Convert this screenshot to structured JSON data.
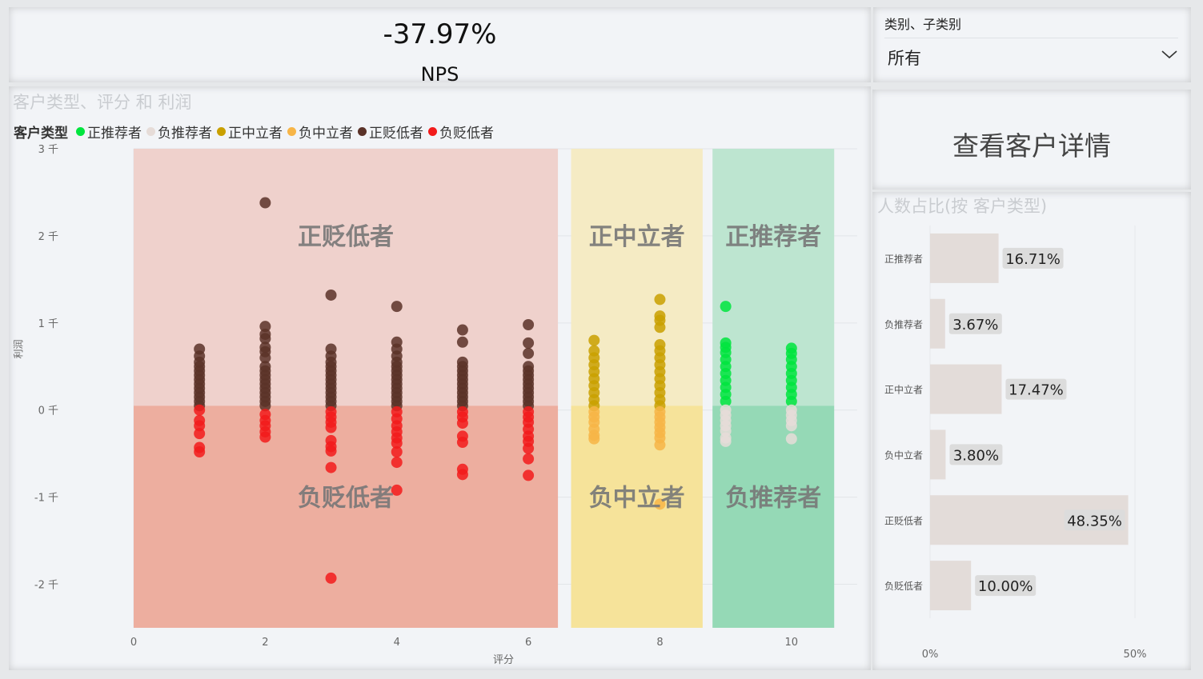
{
  "kpi": {
    "value": "-37.97%",
    "label": "NPS"
  },
  "slicer": {
    "title": "类别、子类别",
    "value": "所有"
  },
  "button": {
    "label": "查看客户详情"
  },
  "colors": {
    "正推荐者": "#00e53e",
    "负推荐者": "#e6dcd8",
    "正中立者": "#c9a000",
    "负中立者": "#f7b547",
    "正贬低者": "#5a3228",
    "负贬低者": "#f21b1b"
  },
  "scatter": {
    "title": "客户类型、评分 和 利润",
    "legend_title": "客户类型",
    "legend": [
      "正推荐者",
      "负推荐者",
      "正中立者",
      "负中立者",
      "正贬低者",
      "负贬低者"
    ],
    "zones": [
      {
        "label": "正贬低者",
        "x": [
          0,
          6.45
        ],
        "y": [
          0.05,
          3
        ],
        "color": "#efd1cc"
      },
      {
        "label": "负贬低者",
        "x": [
          0,
          6.45
        ],
        "y": [
          -2.5,
          0.05
        ],
        "color": "#edae9f"
      },
      {
        "label": "正中立者",
        "x": [
          6.65,
          8.65
        ],
        "y": [
          0.05,
          3
        ],
        "color": "#f5ebc4"
      },
      {
        "label": "负中立者",
        "x": [
          6.65,
          8.65
        ],
        "y": [
          -2.5,
          0.05
        ],
        "color": "#f6e39a"
      },
      {
        "label": "正推荐者",
        "x": [
          8.8,
          10.65
        ],
        "y": [
          0.05,
          3
        ],
        "color": "#bde5d0"
      },
      {
        "label": "负推荐者",
        "x": [
          8.8,
          10.65
        ],
        "y": [
          -2.5,
          0.05
        ],
        "color": "#95d9b6"
      }
    ],
    "chart_data": {
      "type": "scatter",
      "xlabel": "评分",
      "ylabel": "利润",
      "xlim": [
        0,
        11
      ],
      "ylim": [
        -2.5,
        3
      ],
      "xticks": [
        0,
        2,
        4,
        6,
        8,
        10
      ],
      "yticks": [
        {
          "value": 3,
          "label": "3 千"
        },
        {
          "value": 2,
          "label": "2 千"
        },
        {
          "value": 1,
          "label": "1 千"
        },
        {
          "value": 0,
          "label": "0 千"
        },
        {
          "value": -1,
          "label": "-1 千"
        },
        {
          "value": -2,
          "label": "-2 千"
        }
      ],
      "y_unit": "千",
      "series": [
        {
          "name": "正贬低者",
          "points": [
            [
              1,
              0.05
            ],
            [
              1,
              0.1
            ],
            [
              1,
              0.15
            ],
            [
              1,
              0.2
            ],
            [
              1,
              0.25
            ],
            [
              1,
              0.3
            ],
            [
              1,
              0.35
            ],
            [
              1,
              0.4
            ],
            [
              1,
              0.45
            ],
            [
              1,
              0.5
            ],
            [
              1,
              0.55
            ],
            [
              1,
              0.62
            ],
            [
              1,
              0.7
            ],
            [
              2,
              0.05
            ],
            [
              2,
              0.1
            ],
            [
              2,
              0.15
            ],
            [
              2,
              0.2
            ],
            [
              2,
              0.25
            ],
            [
              2,
              0.3
            ],
            [
              2,
              0.35
            ],
            [
              2,
              0.4
            ],
            [
              2,
              0.45
            ],
            [
              2,
              0.5
            ],
            [
              2,
              0.6
            ],
            [
              2,
              0.67
            ],
            [
              2,
              0.72
            ],
            [
              2,
              0.82
            ],
            [
              2,
              0.87
            ],
            [
              2,
              0.96
            ],
            [
              2,
              2.38
            ],
            [
              3,
              0.05
            ],
            [
              3,
              0.1
            ],
            [
              3,
              0.15
            ],
            [
              3,
              0.2
            ],
            [
              3,
              0.25
            ],
            [
              3,
              0.3
            ],
            [
              3,
              0.35
            ],
            [
              3,
              0.4
            ],
            [
              3,
              0.45
            ],
            [
              3,
              0.5
            ],
            [
              3,
              0.55
            ],
            [
              3,
              0.62
            ],
            [
              3,
              0.7
            ],
            [
              3,
              1.32
            ],
            [
              4,
              0.05
            ],
            [
              4,
              0.1
            ],
            [
              4,
              0.15
            ],
            [
              4,
              0.2
            ],
            [
              4,
              0.25
            ],
            [
              4,
              0.3
            ],
            [
              4,
              0.35
            ],
            [
              4,
              0.4
            ],
            [
              4,
              0.45
            ],
            [
              4,
              0.5
            ],
            [
              4,
              0.55
            ],
            [
              4,
              0.62
            ],
            [
              4,
              0.7
            ],
            [
              4,
              0.78
            ],
            [
              4,
              1.19
            ],
            [
              5,
              0.05
            ],
            [
              5,
              0.1
            ],
            [
              5,
              0.15
            ],
            [
              5,
              0.2
            ],
            [
              5,
              0.25
            ],
            [
              5,
              0.3
            ],
            [
              5,
              0.35
            ],
            [
              5,
              0.4
            ],
            [
              5,
              0.45
            ],
            [
              5,
              0.5
            ],
            [
              5,
              0.55
            ],
            [
              5,
              0.78
            ],
            [
              5,
              0.92
            ],
            [
              6,
              0.05
            ],
            [
              6,
              0.1
            ],
            [
              6,
              0.15
            ],
            [
              6,
              0.2
            ],
            [
              6,
              0.25
            ],
            [
              6,
              0.3
            ],
            [
              6,
              0.35
            ],
            [
              6,
              0.4
            ],
            [
              6,
              0.45
            ],
            [
              6,
              0.5
            ],
            [
              6,
              0.65
            ],
            [
              6,
              0.77
            ],
            [
              6,
              0.98
            ]
          ]
        },
        {
          "name": "负贬低者",
          "points": [
            [
              1,
              0.0
            ],
            [
              1,
              -0.12
            ],
            [
              1,
              -0.18
            ],
            [
              1,
              -0.27
            ],
            [
              1,
              -0.43
            ],
            [
              1,
              -0.48
            ],
            [
              2,
              -0.05
            ],
            [
              2,
              -0.12
            ],
            [
              2,
              -0.18
            ],
            [
              2,
              -0.25
            ],
            [
              2,
              -0.31
            ],
            [
              3,
              -0.02
            ],
            [
              3,
              -0.08
            ],
            [
              3,
              -0.14
            ],
            [
              3,
              -0.2
            ],
            [
              3,
              -0.35
            ],
            [
              3,
              -0.42
            ],
            [
              3,
              -0.47
            ],
            [
              3,
              -0.66
            ],
            [
              3,
              -1.93
            ],
            [
              4,
              -0.02
            ],
            [
              4,
              -0.1
            ],
            [
              4,
              -0.18
            ],
            [
              4,
              -0.25
            ],
            [
              4,
              -0.32
            ],
            [
              4,
              -0.38
            ],
            [
              4,
              -0.48
            ],
            [
              4,
              -0.6
            ],
            [
              4,
              -0.92
            ],
            [
              5,
              -0.02
            ],
            [
              5,
              -0.08
            ],
            [
              5,
              -0.15
            ],
            [
              5,
              -0.3
            ],
            [
              5,
              -0.37
            ],
            [
              5,
              -0.68
            ],
            [
              5,
              -0.74
            ],
            [
              6,
              -0.02
            ],
            [
              6,
              -0.08
            ],
            [
              6,
              -0.14
            ],
            [
              6,
              -0.22
            ],
            [
              6,
              -0.3
            ],
            [
              6,
              -0.36
            ],
            [
              6,
              -0.44
            ],
            [
              6,
              -0.56
            ],
            [
              6,
              -0.75
            ]
          ]
        },
        {
          "name": "正中立者",
          "points": [
            [
              7,
              0.05
            ],
            [
              7,
              0.12
            ],
            [
              7,
              0.2
            ],
            [
              7,
              0.28
            ],
            [
              7,
              0.36
            ],
            [
              7,
              0.44
            ],
            [
              7,
              0.52
            ],
            [
              7,
              0.6
            ],
            [
              7,
              0.68
            ],
            [
              7,
              0.8
            ],
            [
              8,
              0.05
            ],
            [
              8,
              0.12
            ],
            [
              8,
              0.2
            ],
            [
              8,
              0.28
            ],
            [
              8,
              0.36
            ],
            [
              8,
              0.44
            ],
            [
              8,
              0.52
            ],
            [
              8,
              0.6
            ],
            [
              8,
              0.68
            ],
            [
              8,
              0.75
            ],
            [
              8,
              0.95
            ],
            [
              8,
              1.03
            ],
            [
              8,
              1.08
            ],
            [
              8,
              1.27
            ]
          ]
        },
        {
          "name": "负中立者",
          "points": [
            [
              7,
              -0.02
            ],
            [
              7,
              -0.08
            ],
            [
              7,
              -0.14
            ],
            [
              7,
              -0.22
            ],
            [
              7,
              -0.29
            ],
            [
              7,
              -0.33
            ],
            [
              8,
              -0.02
            ],
            [
              8,
              -0.08
            ],
            [
              8,
              -0.14
            ],
            [
              8,
              -0.2
            ],
            [
              8,
              -0.26
            ],
            [
              8,
              -0.32
            ],
            [
              8,
              -0.4
            ],
            [
              8,
              -1.08
            ]
          ]
        },
        {
          "name": "正推荐者",
          "points": [
            [
              9,
              0.1
            ],
            [
              9,
              0.18
            ],
            [
              9,
              0.26
            ],
            [
              9,
              0.34
            ],
            [
              9,
              0.42
            ],
            [
              9,
              0.5
            ],
            [
              9,
              0.58
            ],
            [
              9,
              0.66
            ],
            [
              9,
              0.72
            ],
            [
              9,
              0.77
            ],
            [
              9,
              1.19
            ],
            [
              10,
              0.1
            ],
            [
              10,
              0.18
            ],
            [
              10,
              0.26
            ],
            [
              10,
              0.34
            ],
            [
              10,
              0.42
            ],
            [
              10,
              0.5
            ],
            [
              10,
              0.58
            ],
            [
              10,
              0.65
            ],
            [
              10,
              0.71
            ]
          ]
        },
        {
          "name": "负推荐者",
          "points": [
            [
              9,
              0.0
            ],
            [
              9,
              -0.06
            ],
            [
              9,
              -0.12
            ],
            [
              9,
              -0.18
            ],
            [
              9,
              -0.24
            ],
            [
              9,
              -0.32
            ],
            [
              9,
              -0.36
            ],
            [
              10,
              0.0
            ],
            [
              10,
              -0.06
            ],
            [
              10,
              -0.12
            ],
            [
              10,
              -0.18
            ],
            [
              10,
              -0.33
            ]
          ]
        }
      ]
    }
  },
  "bars": {
    "title": "人数占比(按 客户类型)",
    "bar_color": "#e3dcd9",
    "label_bg": "#dcdcdc",
    "chart_data": {
      "type": "bar",
      "orientation": "horizontal",
      "categories": [
        "正推荐者",
        "负推荐者",
        "正中立者",
        "负中立者",
        "正贬低者",
        "负贬低者"
      ],
      "values": [
        16.71,
        3.67,
        17.47,
        3.8,
        48.35,
        10.0
      ],
      "labels": [
        "16.71%",
        "3.67%",
        "17.47%",
        "3.80%",
        "48.35%",
        "10.00%"
      ],
      "xlim": [
        0,
        50
      ],
      "xticks": [
        {
          "value": 0,
          "label": "0%"
        },
        {
          "value": 50,
          "label": "50%"
        }
      ]
    }
  }
}
